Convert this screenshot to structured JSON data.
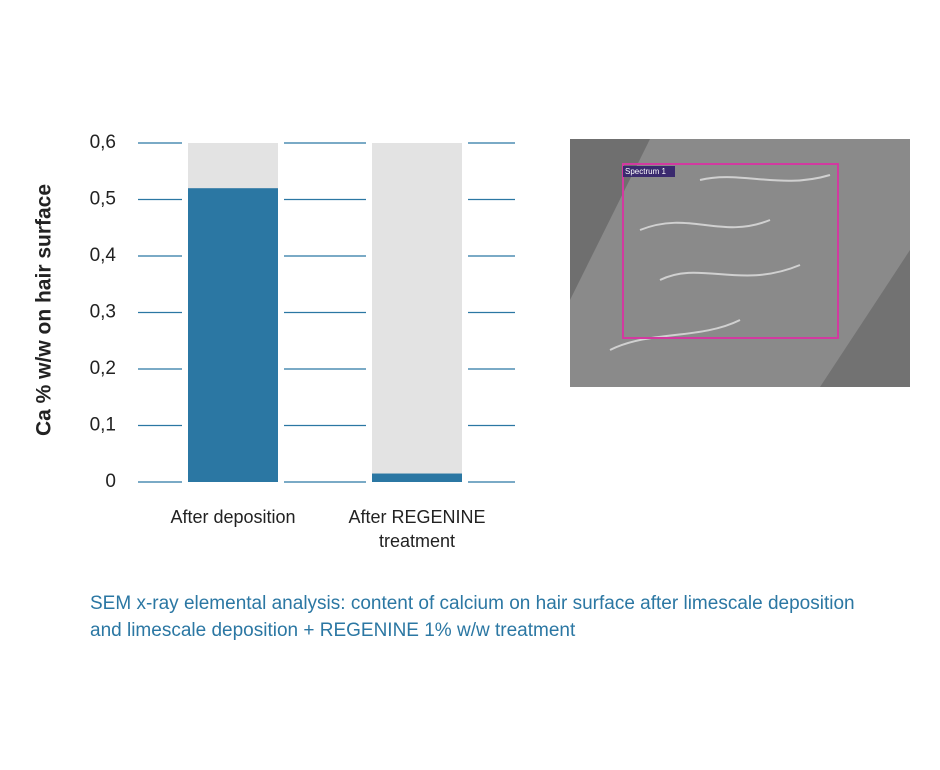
{
  "chart_data": {
    "type": "bar",
    "y_label": "Ca % w/w on hair surface",
    "categories": [
      "After deposition",
      "After REGENINE treatment"
    ],
    "values": [
      0.52,
      0.015
    ],
    "color": "#2b77a3",
    "ylim": [
      0,
      0.6
    ],
    "yticks": [
      0,
      {
        "value": 0.1,
        "label": "0,1"
      },
      {
        "value": 0.2,
        "label": "0,2"
      },
      {
        "value": 0.3,
        "label": "0,3"
      },
      {
        "value": 0.4,
        "label": "0,4"
      },
      {
        "value": 0.5,
        "label": "0,5"
      },
      {
        "value": 0.6,
        "label": "0,6"
      }
    ],
    "grid": true
  },
  "image": {
    "label": "Spectrum 1"
  },
  "caption": "SEM x-ray elemental analysis: content of calcium on hair surface after limescale deposition and limescale deposition + REGENINE 1% w/w treatment"
}
